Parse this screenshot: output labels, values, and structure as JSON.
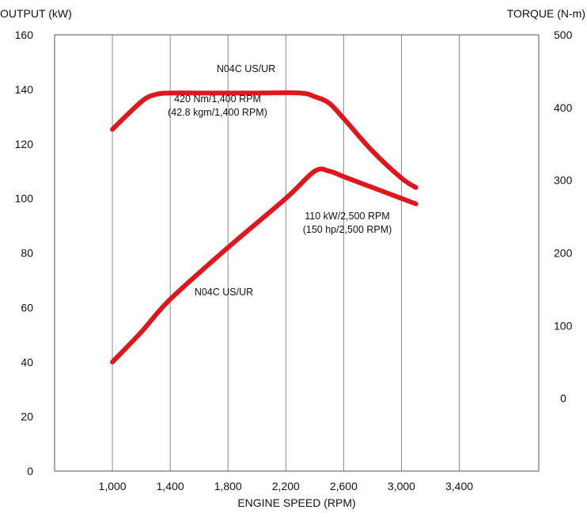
{
  "chart_data": {
    "type": "line",
    "xlabel": "ENGINE SPEED (RPM)",
    "ylabel_left": "OUTPUT (kW)",
    "ylabel_right": "TORQUE (N-m)",
    "x_range": [
      600,
      3950
    ],
    "x_ticks": [
      1000,
      1400,
      1800,
      2200,
      2600,
      3000,
      3400
    ],
    "x_tick_labels": [
      "1,000",
      "1,400",
      "1,800",
      "2,200",
      "2,600",
      "3,000",
      "3,400"
    ],
    "y_left_range": [
      0,
      160
    ],
    "y_left_ticks": [
      0,
      20,
      40,
      60,
      80,
      100,
      120,
      140,
      160
    ],
    "y_left_tick_labels": [
      "0",
      "20",
      "40",
      "60",
      "80",
      "100",
      "120",
      "140",
      "160"
    ],
    "y_right_range": [
      -100,
      500
    ],
    "y_right_ticks": [
      0,
      100,
      200,
      300,
      400,
      500
    ],
    "y_right_tick_labels": [
      "0",
      "100",
      "200",
      "300",
      "400",
      "500"
    ],
    "grid": "vertical",
    "line_color": "#e0161d",
    "series": [
      {
        "name": "N04C US/UR",
        "measure": "torque",
        "axis": "right",
        "x": [
          1000,
          1200,
          1300,
          1400,
          1600,
          2000,
          2300,
          2400,
          2500,
          2600,
          2800,
          3000,
          3100
        ],
        "values": [
          370,
          408,
          418,
          420,
          420,
          420,
          420,
          415,
          406,
          385,
          340,
          303,
          290
        ]
      },
      {
        "name": "N04C US/UR",
        "measure": "output",
        "axis": "left",
        "x": [
          1000,
          1200,
          1400,
          1800,
          2200,
          2400,
          2500,
          2600,
          2800,
          3000,
          3100
        ],
        "values": [
          40,
          51,
          63,
          82,
          100,
          110,
          110,
          108,
          104,
          100,
          98
        ]
      }
    ],
    "annotations": {
      "torque_label": "N04C US/UR",
      "torque_peak_line1": "420 Nm/1,400 RPM",
      "torque_peak_line2": "(42.8 kgm/1,400 RPM)",
      "output_label": "N04C US/UR",
      "output_peak_line1": "110 kW/2,500 RPM",
      "output_peak_line2": "(150 hp/2,500 RPM)"
    }
  }
}
